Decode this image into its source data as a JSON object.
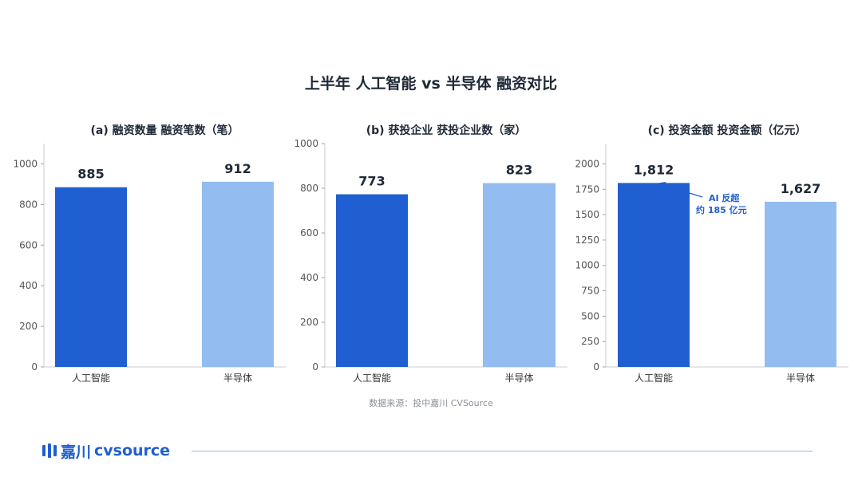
{
  "title": "上半年 人工智能 vs 半导体 融资对比",
  "source": "数据来源：投中嘉川 CVSource",
  "brand": {
    "name": "嘉川",
    "suffix": "cvsource"
  },
  "colors": {
    "ai": "#1f5fd1",
    "semi": "#93bcf1",
    "text": "#1f2937",
    "axis": "#555555"
  },
  "chart_data": [
    {
      "type": "bar",
      "title": "(a) 融资数量 融资笔数（笔）",
      "categories": [
        "人工智能",
        "半导体"
      ],
      "values": [
        885,
        912
      ],
      "value_labels": [
        "885",
        "912"
      ],
      "ylim": [
        0,
        1100
      ],
      "yticks": [
        0,
        200,
        400,
        600,
        800,
        1000
      ],
      "ytick_labels": [
        "0",
        "200",
        "400",
        "600",
        "800",
        "1000"
      ],
      "xlabel": "",
      "ylabel": ""
    },
    {
      "type": "bar",
      "title": "(b) 获投企业 获投企业数（家）",
      "categories": [
        "人工智能",
        "半导体"
      ],
      "values": [
        773,
        823
      ],
      "value_labels": [
        "773",
        "823"
      ],
      "ylim": [
        0,
        1000
      ],
      "yticks": [
        0,
        200,
        400,
        600,
        800,
        1000
      ],
      "ytick_labels": [
        "0",
        "200",
        "400",
        "600",
        "800",
        "1000"
      ],
      "xlabel": "",
      "ylabel": ""
    },
    {
      "type": "bar",
      "title": "(c) 投资金额 投资金额（亿元）",
      "categories": [
        "人工智能",
        "半导体"
      ],
      "values": [
        1812,
        1627
      ],
      "value_labels": [
        "1,812",
        "1,627"
      ],
      "ylim": [
        0,
        2200
      ],
      "yticks": [
        0,
        250,
        500,
        750,
        1000,
        1250,
        1500,
        1750,
        2000
      ],
      "ytick_labels": [
        "0",
        "250",
        "500",
        "750",
        "1000",
        "1250",
        "1500",
        "1750",
        "2000"
      ],
      "xlabel": "",
      "ylabel": "",
      "annotation": {
        "lines": [
          "AI 反超",
          "约 185 亿元"
        ],
        "target_index": 0
      }
    }
  ]
}
